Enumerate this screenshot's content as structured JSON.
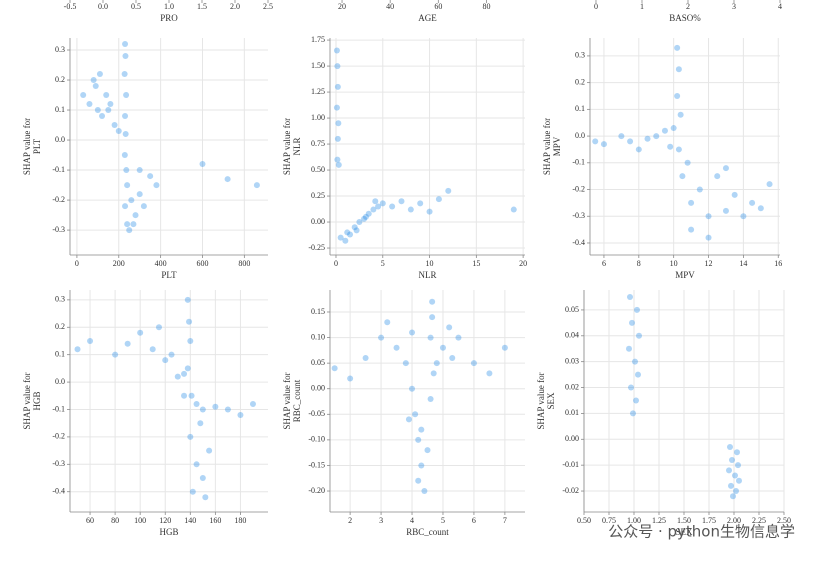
{
  "chart_data": [
    {
      "type": "axis",
      "xlabel": "PRO",
      "xlim": [
        -0.5,
        2.5
      ],
      "xticks": [
        -0.5,
        {
          "value": 0,
          "label": "0.0"
        },
        0.5,
        {
          "value": 1,
          "label": "1.0"
        },
        1.5,
        {
          "value": 2,
          "label": "2.0"
        },
        2.5
      ]
    },
    {
      "type": "axis",
      "xlabel": "AGE",
      "xlim": [
        15,
        96
      ],
      "xticks": [
        20,
        40,
        60,
        80
      ]
    },
    {
      "type": "axis",
      "xlabel": "BASO%",
      "xlim": [
        -0.13,
        4
      ],
      "xticks": [
        0,
        1,
        2,
        3,
        4
      ]
    },
    {
      "type": "scatter",
      "xlabel": "PLT",
      "ylabel": [
        "SHAP value for",
        "PLT"
      ],
      "color": "#1e88e5",
      "grid": true,
      "xlim": [
        -33,
        913
      ],
      "xticks": [
        0,
        200,
        400,
        600,
        800
      ],
      "ylim": [
        -0.383,
        0.34
      ],
      "yticks": [
        -0.3,
        -0.2,
        -0.1,
        {
          "value": 0,
          "label": "0.0"
        },
        0.1,
        0.2,
        0.3
      ],
      "x": [
        30,
        60,
        80,
        100,
        120,
        140,
        160,
        180,
        200,
        90,
        150,
        110,
        230,
        232,
        228,
        235,
        230,
        233,
        229,
        236,
        240,
        260,
        280,
        300,
        320,
        350,
        380,
        250,
        270,
        300,
        600,
        720,
        860,
        230,
        240
      ],
      "y": [
        0.15,
        0.12,
        0.2,
        0.1,
        0.08,
        0.15,
        0.12,
        0.05,
        0.03,
        0.18,
        0.1,
        0.22,
        0.32,
        0.28,
        0.22,
        0.15,
        0.08,
        0.02,
        -0.05,
        -0.1,
        -0.15,
        -0.2,
        -0.25,
        -0.18,
        -0.22,
        -0.12,
        -0.15,
        -0.3,
        -0.28,
        -0.1,
        -0.08,
        -0.13,
        -0.15,
        -0.22,
        -0.28
      ]
    },
    {
      "type": "scatter",
      "xlabel": "NLR",
      "ylabel": [
        "SHAP value for",
        "NLR"
      ],
      "color": "#1e88e5",
      "grid": true,
      "xlim": [
        -0.64,
        20.2
      ],
      "xticks": [
        0,
        5,
        10,
        15,
        20
      ],
      "ylim": [
        -0.317,
        1.77
      ],
      "yticks": [
        -0.25,
        {
          "value": 0,
          "label": "0.00"
        },
        0.25,
        {
          "value": 0.5,
          "label": "0.50"
        },
        0.75,
        {
          "value": 1,
          "label": "1.00"
        },
        1.25,
        {
          "value": 1.5,
          "label": "1.50"
        },
        1.75
      ],
      "x": [
        0.1,
        0.15,
        0.2,
        0.1,
        0.25,
        0.2,
        0.15,
        0.3,
        0.5,
        1,
        1.5,
        2,
        2.5,
        3,
        3.5,
        4,
        4.5,
        5,
        6,
        7,
        8,
        9,
        10,
        11,
        12,
        19,
        1.2,
        2.2,
        3.2,
        4.2
      ],
      "y": [
        1.65,
        1.5,
        1.3,
        1.1,
        0.95,
        0.8,
        0.6,
        0.55,
        -0.15,
        -0.18,
        -0.12,
        -0.05,
        0,
        0.03,
        0.08,
        0.12,
        0.15,
        0.18,
        0.15,
        0.2,
        0.12,
        0.18,
        0.1,
        0.22,
        0.3,
        0.12,
        -0.1,
        -0.08,
        0.05,
        0.2
      ]
    },
    {
      "type": "scatter",
      "xlabel": "MPV",
      "ylabel": [
        "SHAP value for",
        "MPV"
      ],
      "color": "#1e88e5",
      "grid": true,
      "xlim": [
        5.2,
        16.1
      ],
      "xticks": [
        6,
        8,
        10,
        12,
        14,
        16
      ],
      "ylim": [
        -0.445,
        0.367
      ],
      "yticks": [
        -0.4,
        -0.3,
        -0.2,
        -0.1,
        {
          "value": 0,
          "label": "0.0"
        },
        0.1,
        0.2,
        0.3
      ],
      "x": [
        5.5,
        6,
        7,
        7.5,
        8,
        8.5,
        9,
        9.5,
        10,
        10.2,
        10.3,
        10.2,
        10.4,
        10.3,
        10.5,
        11,
        11.5,
        12,
        12.5,
        13,
        13.5,
        14,
        14.5,
        15,
        15.5,
        11,
        12,
        13,
        10.8,
        9.8
      ],
      "y": [
        -0.02,
        -0.03,
        0,
        -0.02,
        -0.05,
        -0.01,
        0,
        0.02,
        0.03,
        0.33,
        0.25,
        0.15,
        0.08,
        -0.05,
        -0.15,
        -0.25,
        -0.2,
        -0.3,
        -0.15,
        -0.28,
        -0.22,
        -0.3,
        -0.25,
        -0.27,
        -0.18,
        -0.35,
        -0.38,
        -0.12,
        -0.1,
        -0.04
      ]
    },
    {
      "type": "scatter",
      "xlabel": "HGB",
      "ylabel": [
        "SHAP value for",
        "HGB"
      ],
      "color": "#1e88e5",
      "grid": true,
      "xlim": [
        44,
        202
      ],
      "xticks": [
        60,
        80,
        100,
        120,
        140,
        160,
        180
      ],
      "ylim": [
        -0.474,
        0.336
      ],
      "yticks": [
        -0.4,
        -0.3,
        -0.2,
        -0.1,
        {
          "value": 0,
          "label": "0.0"
        },
        0.1,
        0.2,
        0.3
      ],
      "x": [
        50,
        60,
        80,
        90,
        100,
        110,
        115,
        120,
        125,
        130,
        135,
        138,
        139,
        140,
        138,
        141,
        145,
        150,
        160,
        170,
        180,
        190,
        140,
        145,
        150,
        155,
        142,
        148,
        152,
        135
      ],
      "y": [
        0.12,
        0.15,
        0.1,
        0.14,
        0.18,
        0.12,
        0.2,
        0.08,
        0.1,
        0.02,
        0.03,
        0.3,
        0.22,
        0.15,
        0.05,
        -0.05,
        -0.08,
        -0.1,
        -0.09,
        -0.1,
        -0.12,
        -0.08,
        -0.2,
        -0.3,
        -0.35,
        -0.25,
        -0.4,
        -0.15,
        -0.42,
        -0.05
      ]
    },
    {
      "type": "scatter",
      "xlabel": "RBC_count",
      "ylabel": [
        "SHAP value for",
        "RBC_count"
      ],
      "color": "#1e88e5",
      "grid": true,
      "xlim": [
        1.35,
        7.65
      ],
      "xticks": [
        2,
        3,
        4,
        5,
        6,
        7
      ],
      "ylim": [
        -0.241,
        0.193
      ],
      "yticks": [
        {
          "value": -0.2,
          "label": "-0.20"
        },
        -0.15,
        {
          "value": -0.1,
          "label": "-0.10"
        },
        -0.05,
        {
          "value": 0,
          "label": "0.00"
        },
        0.05,
        {
          "value": 0.1,
          "label": "0.10"
        },
        0.15
      ],
      "x": [
        1.5,
        2,
        2.5,
        3,
        3.2,
        3.5,
        3.8,
        4,
        4.1,
        4.2,
        4.3,
        4.4,
        4.5,
        4.6,
        4.65,
        4.6,
        4.7,
        4.8,
        5,
        5.2,
        5.5,
        6,
        6.5,
        7,
        4.2,
        4.3,
        3.9,
        5.3,
        4.65,
        4.0
      ],
      "y": [
        0.04,
        0.02,
        0.06,
        0.1,
        0.13,
        0.08,
        0.05,
        0,
        -0.05,
        -0.1,
        -0.15,
        -0.2,
        -0.12,
        -0.02,
        0.17,
        0.1,
        0.03,
        0.05,
        0.08,
        0.12,
        0.1,
        0.05,
        0.03,
        0.08,
        -0.18,
        -0.08,
        -0.06,
        0.06,
        0.14,
        0.11
      ]
    },
    {
      "type": "scatter",
      "xlabel": "SEX",
      "ylabel": [
        "SHAP value for",
        "SEX"
      ],
      "color": "#1e88e5",
      "grid": true,
      "xlim": [
        0.5,
        2.5
      ],
      "xticks": [
        {
          "value": 0.5,
          "label": "0.50"
        },
        0.75,
        {
          "value": 1,
          "label": "1.00"
        },
        1.25,
        {
          "value": 1.5,
          "label": "1.50"
        },
        1.75,
        {
          "value": 2,
          "label": "2.00"
        },
        2.25,
        {
          "value": 2.5,
          "label": "2.50"
        }
      ],
      "ylim": [
        -0.0281,
        0.0577
      ],
      "yticks": [
        -0.02,
        -0.01,
        {
          "value": 0,
          "label": "0.00"
        },
        0.01,
        0.02,
        0.03,
        0.04,
        0.05
      ],
      "x": [
        0.96,
        1.03,
        0.98,
        1.05,
        0.95,
        1.01,
        1.04,
        0.97,
        1.02,
        0.99,
        1.96,
        2.03,
        1.98,
        2.04,
        1.95,
        2.01,
        2.05,
        1.97,
        2.02,
        1.99
      ],
      "y": [
        0.055,
        0.05,
        0.045,
        0.04,
        0.035,
        0.03,
        0.025,
        0.02,
        0.015,
        0.01,
        -0.003,
        -0.005,
        -0.008,
        -0.01,
        -0.012,
        -0.014,
        -0.016,
        -0.018,
        -0.02,
        -0.022
      ]
    }
  ],
  "watermark": "公众号 · python生物信息学"
}
